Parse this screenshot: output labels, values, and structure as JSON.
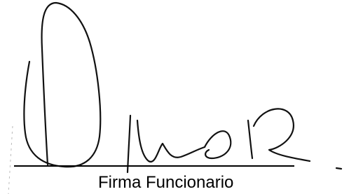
{
  "signature_label": "Firma Funcionario"
}
